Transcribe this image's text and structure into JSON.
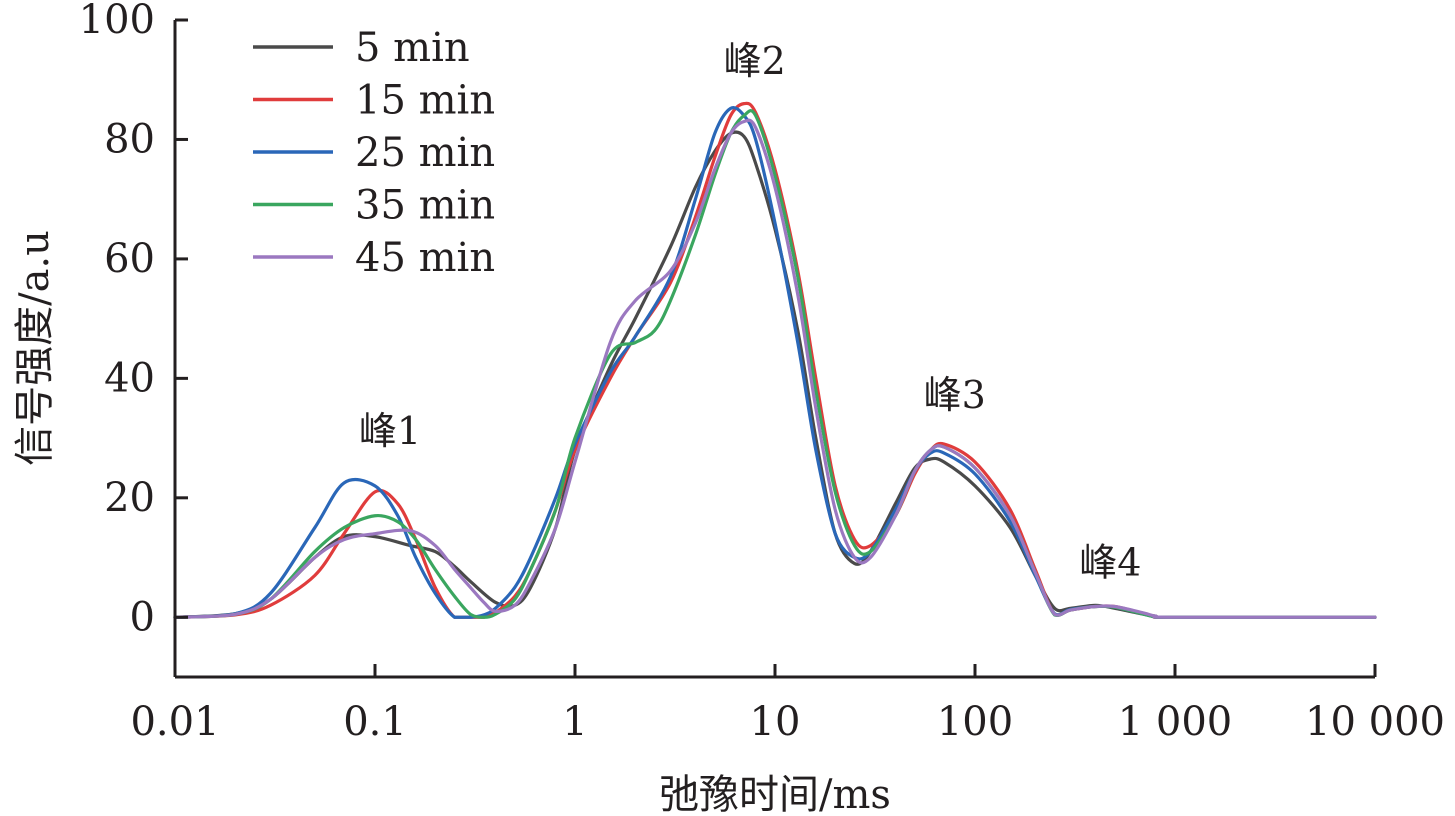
{
  "chart_data": {
    "type": "line",
    "title": "",
    "xlabel": "弛豫时间/ms",
    "ylabel": "信号强度/a.u",
    "xscale": "log",
    "xlim": [
      0.01,
      10000
    ],
    "ylim": [
      -10,
      100
    ],
    "xticks": [
      0.01,
      0.1,
      1,
      10,
      100,
      1000,
      10000
    ],
    "xtick_labels": [
      "0.01",
      "0.1",
      "1",
      "10",
      "100",
      "1 000",
      "10 000"
    ],
    "yticks": [
      0,
      20,
      40,
      60,
      80,
      100
    ],
    "ytick_labels": [
      "0",
      "20",
      "40",
      "60",
      "80",
      "100"
    ],
    "grid": false,
    "legend_position": "top-left",
    "annotations": [
      {
        "text": "峰1",
        "x": 0.12,
        "y": 29
      },
      {
        "text": "峰2",
        "x": 8,
        "y": 91
      },
      {
        "text": "峰3",
        "x": 80,
        "y": 35
      },
      {
        "text": "峰4",
        "x": 480,
        "y": 7
      }
    ],
    "series": [
      {
        "name": "5 min",
        "color": "#4a4a4a",
        "x": [
          0.01,
          0.02,
          0.03,
          0.05,
          0.07,
          0.1,
          0.15,
          0.2,
          0.25,
          0.3,
          0.4,
          0.5,
          0.6,
          0.8,
          1,
          1.5,
          2,
          3,
          4,
          5,
          6,
          7,
          8,
          10,
          13,
          16,
          20,
          25,
          30,
          40,
          50,
          60,
          70,
          100,
          150,
          200,
          250,
          300,
          400,
          500,
          700,
          800,
          1000,
          10000
        ],
        "y": [
          0,
          0.6,
          3,
          10,
          13.5,
          13.5,
          12,
          11,
          8.5,
          6,
          2.5,
          2,
          5,
          15,
          28,
          42,
          50,
          62,
          72,
          78,
          81,
          80.5,
          76,
          65,
          48,
          30,
          14,
          9,
          11,
          19,
          25,
          26.5,
          26,
          22,
          15,
          7,
          1.5,
          1.5,
          2,
          1.5,
          0.5,
          0.2,
          0,
          0
        ]
      },
      {
        "name": "15 min",
        "color": "#e03c3c",
        "x": [
          0.01,
          0.02,
          0.03,
          0.05,
          0.07,
          0.1,
          0.13,
          0.16,
          0.2,
          0.25,
          0.3,
          0.35,
          0.4,
          0.5,
          0.6,
          0.8,
          1,
          1.5,
          2,
          3,
          4,
          5,
          6,
          7,
          8,
          10,
          13,
          16,
          20,
          25,
          30,
          40,
          50,
          60,
          70,
          100,
          150,
          200,
          250,
          300,
          400,
          500,
          700,
          800,
          1000,
          10000
        ],
        "y": [
          0,
          0.4,
          2,
          7,
          14,
          21,
          19,
          13,
          5,
          0,
          0,
          0,
          0.8,
          3.5,
          8,
          18,
          28,
          40,
          47,
          56,
          67,
          77,
          84,
          86,
          84.5,
          75,
          58,
          40,
          22,
          13,
          12,
          17,
          24,
          28,
          29,
          26,
          18,
          8,
          0.5,
          1.2,
          1.8,
          1.8,
          0.6,
          0.1,
          0,
          0
        ]
      },
      {
        "name": "25 min",
        "color": "#2a67b8",
        "x": [
          0.01,
          0.02,
          0.03,
          0.05,
          0.07,
          0.1,
          0.13,
          0.16,
          0.2,
          0.25,
          0.3,
          0.35,
          0.4,
          0.5,
          0.6,
          0.8,
          1,
          1.5,
          2,
          3,
          4,
          5,
          6,
          7,
          8,
          10,
          13,
          16,
          20,
          25,
          30,
          40,
          50,
          60,
          70,
          100,
          150,
          200,
          250,
          300,
          400,
          500,
          700,
          800,
          1000,
          10000
        ],
        "y": [
          0,
          0.6,
          4,
          15,
          22.5,
          22,
          17,
          10,
          4,
          0,
          0,
          0.4,
          1.5,
          5,
          10,
          20,
          29,
          41,
          47,
          57,
          70,
          81,
          85.2,
          84,
          80,
          66,
          46,
          28,
          14,
          10,
          11,
          18,
          24.5,
          27.5,
          27.5,
          24,
          16,
          7,
          0.6,
          1.3,
          1.8,
          1.7,
          0.5,
          0.1,
          0,
          0
        ]
      },
      {
        "name": "35 min",
        "color": "#3aa65f",
        "x": [
          0.01,
          0.02,
          0.03,
          0.05,
          0.07,
          0.1,
          0.13,
          0.16,
          0.2,
          0.25,
          0.3,
          0.35,
          0.4,
          0.5,
          0.6,
          0.8,
          1,
          1.5,
          2,
          2.5,
          3,
          4,
          5,
          6,
          7,
          8,
          10,
          13,
          16,
          20,
          25,
          30,
          40,
          50,
          60,
          70,
          100,
          150,
          200,
          250,
          300,
          400,
          500,
          700,
          800,
          1000,
          10000
        ],
        "y": [
          0,
          0.5,
          3,
          11,
          15,
          17,
          16,
          13,
          8,
          3.5,
          0.5,
          0,
          0.5,
          3,
          8,
          18,
          30,
          44,
          46,
          48,
          53,
          64,
          74,
          81,
          84,
          84,
          74,
          57,
          38,
          21,
          12,
          11,
          17,
          24.5,
          28,
          28.5,
          25,
          17,
          7.5,
          0.4,
          1.2,
          1.8,
          1.7,
          0.5,
          0.1,
          0,
          0
        ]
      },
      {
        "name": "45 min",
        "color": "#9b78c0",
        "x": [
          0.01,
          0.02,
          0.03,
          0.05,
          0.07,
          0.1,
          0.15,
          0.2,
          0.25,
          0.3,
          0.35,
          0.4,
          0.5,
          0.6,
          0.8,
          1,
          1.5,
          2,
          3,
          4,
          5,
          6,
          7,
          8,
          10,
          13,
          16,
          20,
          25,
          30,
          40,
          50,
          60,
          70,
          100,
          150,
          200,
          250,
          300,
          400,
          500,
          700,
          800,
          1000,
          10000
        ],
        "y": [
          0,
          0.5,
          3,
          10,
          13,
          14,
          14.5,
          12,
          8,
          5,
          2.5,
          1,
          2,
          6,
          15,
          26,
          46,
          53,
          58,
          66,
          75,
          81,
          83,
          82,
          72,
          54,
          35,
          18,
          10,
          10,
          17,
          24.5,
          28,
          28.5,
          25,
          17,
          7.5,
          0.5,
          1.2,
          1.8,
          1.8,
          0.7,
          0.2,
          0,
          0
        ]
      }
    ]
  }
}
